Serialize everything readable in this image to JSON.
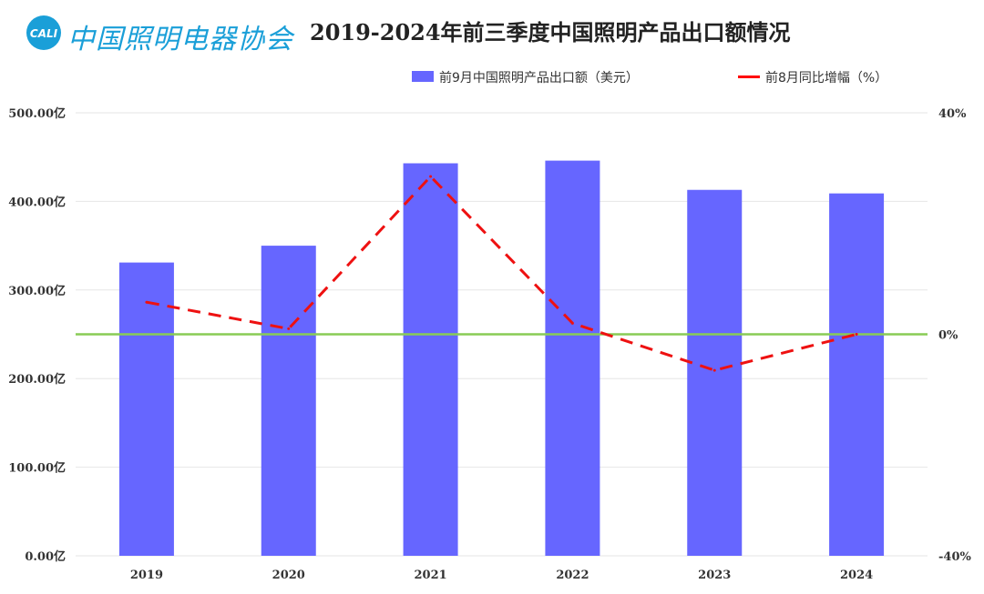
{
  "header": {
    "logo_text": "中国照明电器协会",
    "logo_badge": "CALI"
  },
  "colors": {
    "bar": "#6666ff",
    "line": "#ee1111",
    "zero_line": "#88cc55",
    "grid": "#e6e6e6",
    "logo": "#1a9fd8"
  },
  "chart_data": {
    "type": "bar",
    "title": "2019-2024年前三季度中国照明产品出口额情况",
    "categories": [
      "2019",
      "2020",
      "2021",
      "2022",
      "2023",
      "2024"
    ],
    "series": [
      {
        "name": "前9月中国照明产品出口额（美元）",
        "type": "bar",
        "axis": "left",
        "values": [
          331,
          350,
          443,
          446,
          413,
          409
        ]
      },
      {
        "name": "前8月同比增幅（%）",
        "type": "line",
        "style": "dashed",
        "axis": "right",
        "values": [
          5.8,
          1.0,
          28.5,
          2.0,
          -6.5,
          0.0
        ]
      }
    ],
    "y_left": {
      "min": 0,
      "max": 500,
      "ticks": [
        0,
        100,
        200,
        300,
        400,
        500
      ],
      "tick_labels": [
        "0.00亿",
        "100.00亿",
        "200.00亿",
        "300.00亿",
        "400.00亿",
        "500.00亿"
      ]
    },
    "y_right": {
      "min": -40,
      "max": 40,
      "ticks": [
        -40,
        0,
        40
      ],
      "tick_labels": [
        "-40%",
        "0%",
        "40%"
      ]
    },
    "grid": true,
    "legend": "top-right"
  }
}
